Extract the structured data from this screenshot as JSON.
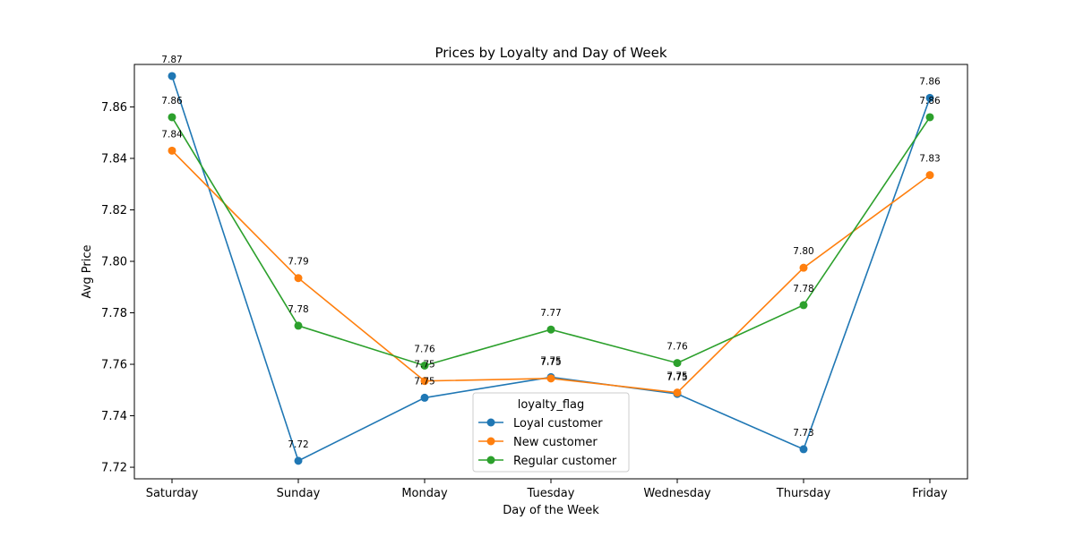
{
  "chart_data": {
    "type": "line",
    "title": "Prices by Loyalty and Day of Week",
    "xlabel": "Day of the Week",
    "ylabel": "Avg Price",
    "categories": [
      "Saturday",
      "Sunday",
      "Monday",
      "Tuesday",
      "Wednesday",
      "Thursday",
      "Friday"
    ],
    "ylim": [
      7.7155,
      7.8765
    ],
    "yticks": [
      "7.72",
      "7.74",
      "7.76",
      "7.78",
      "7.80",
      "7.82",
      "7.84",
      "7.86"
    ],
    "grid": false,
    "legend": {
      "title": "loyalty_flag",
      "placement": "lower-center"
    },
    "series": [
      {
        "name": "Loyal customer",
        "color": "#1f77b4",
        "values": [
          7.872,
          7.7225,
          7.747,
          7.755,
          7.7485,
          7.727,
          7.8635
        ],
        "labels": [
          "7.87",
          "7.72",
          "7.75",
          "7.75",
          "7.75",
          "7.73",
          "7.86"
        ]
      },
      {
        "name": "New customer",
        "color": "#ff7f0e",
        "values": [
          7.843,
          7.7935,
          7.7535,
          7.7545,
          7.749,
          7.7975,
          7.8335
        ],
        "labels": [
          "7.84",
          "7.79",
          "7.75",
          "7.75",
          "7.75",
          "7.80",
          "7.83"
        ]
      },
      {
        "name": "Regular customer",
        "color": "#2ca02c",
        "values": [
          7.856,
          7.775,
          7.7595,
          7.7735,
          7.7605,
          7.783,
          7.856
        ],
        "labels": [
          "7.86",
          "7.78",
          "7.76",
          "7.77",
          "7.76",
          "7.78",
          "7.86"
        ]
      }
    ]
  }
}
